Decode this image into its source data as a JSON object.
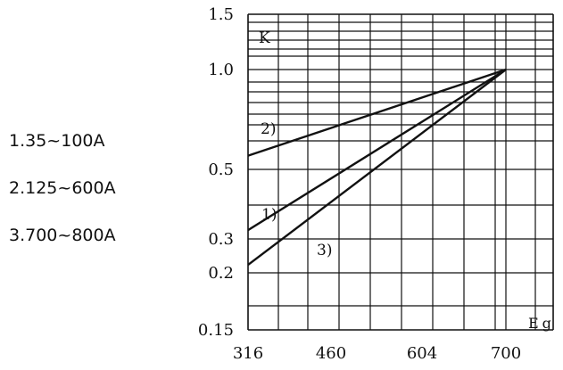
{
  "legend": {
    "items": [
      "1.35~100A",
      "2.125~600A",
      "3.700~800A"
    ]
  },
  "chart_data": {
    "type": "line",
    "title": "",
    "ylabel": "K",
    "xlabel": "Eg",
    "y_scale": "log",
    "x_ticks": [
      "316",
      "460",
      "604",
      "700"
    ],
    "y_ticks": [
      "1.5",
      "1.0",
      "0.5",
      "0.3",
      "0.2",
      "0.15"
    ],
    "xlim": [
      316,
      810
    ],
    "ylim": [
      0.15,
      1.5
    ],
    "grid": true,
    "series": [
      {
        "name": "1)",
        "x": [
          316,
          700
        ],
        "y": [
          0.32,
          1.0
        ]
      },
      {
        "name": "2)",
        "x": [
          316,
          700
        ],
        "y": [
          0.55,
          1.0
        ]
      },
      {
        "name": "3)",
        "x": [
          316,
          700
        ],
        "y": [
          0.22,
          1.0
        ]
      }
    ],
    "colors": {
      "line": "#111111",
      "grid": "#111111",
      "text": "#111111"
    }
  }
}
